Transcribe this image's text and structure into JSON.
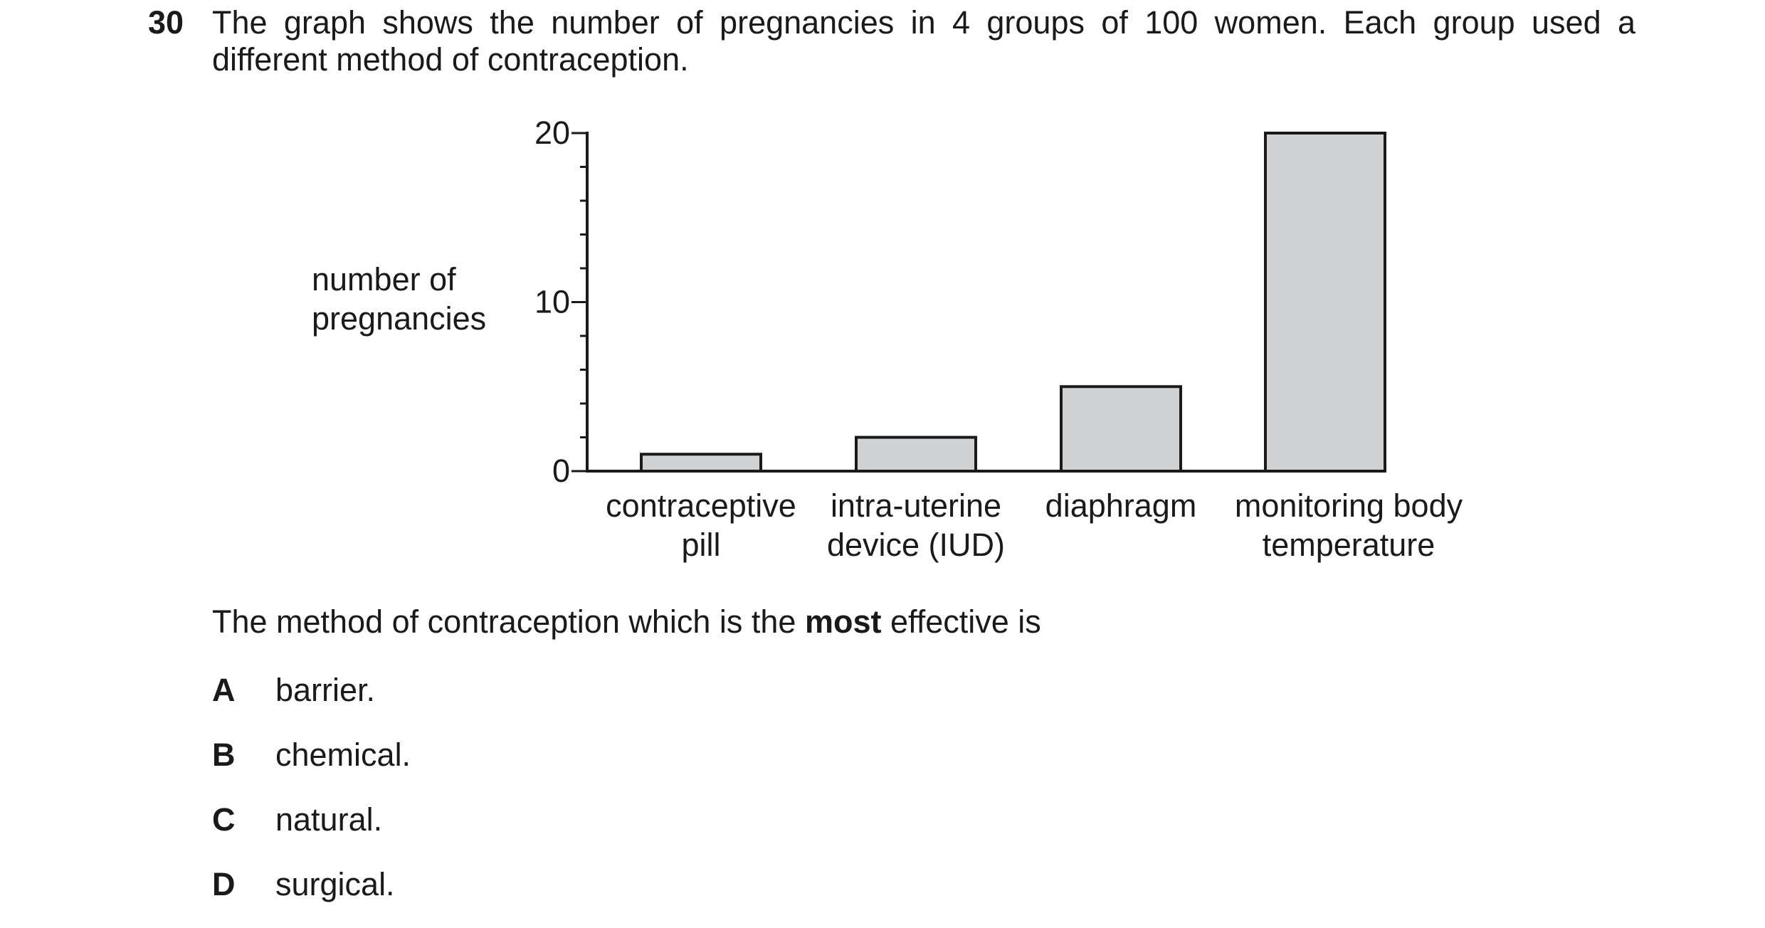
{
  "question": {
    "number": "30",
    "stem": "The graph shows the number of pregnancies in 4 groups of 100 women. Each group used a different method of contraception.",
    "prompt_before": "The method of contraception which is the ",
    "prompt_bold": "most",
    "prompt_after": " effective is",
    "options": [
      {
        "letter": "A",
        "text": "barrier."
      },
      {
        "letter": "B",
        "text": "chemical."
      },
      {
        "letter": "C",
        "text": "natural."
      },
      {
        "letter": "D",
        "text": "surgical."
      }
    ]
  },
  "chart_data": {
    "type": "bar",
    "title": "",
    "ylabel_lines": [
      "number of",
      "pregnancies"
    ],
    "xlabel": "",
    "ylim": [
      0,
      20
    ],
    "y_major_ticks": [
      0,
      10,
      20
    ],
    "y_minor_step": 2,
    "grid": false,
    "categories": [
      [
        "contraceptive",
        "pill"
      ],
      [
        "intra-uterine",
        "device (IUD)"
      ],
      [
        "diaphragm"
      ],
      [
        "monitoring body",
        "temperature"
      ]
    ],
    "values": [
      1,
      2,
      5,
      20
    ],
    "bar_fill": "#d1d2d4",
    "stroke_color": "#1a1a1a"
  }
}
